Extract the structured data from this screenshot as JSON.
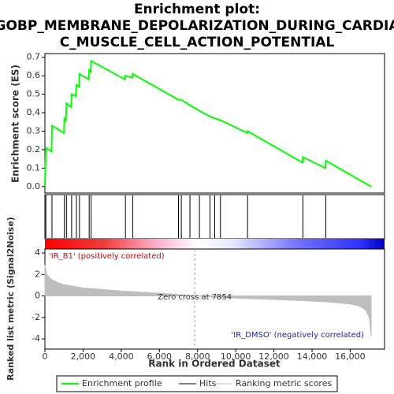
{
  "chart_data": [
    {
      "type": "line",
      "title": [
        "Enrichment plot:",
        "GOBP_MEMBRANE_DEPOLARIZATION_DURING_CARDIA",
        "C_MUSCLE_CELL_ACTION_POTENTIAL"
      ],
      "y_label": "Enrichment score (ES)",
      "ylim": [
        -0.035,
        0.72
      ],
      "yticks": [
        {
          "value": 0,
          "label": "0.0"
        },
        0.1,
        0.2,
        0.3,
        0.4,
        0.5,
        0.6,
        0.7
      ],
      "series": [
        {
          "name": "Enrichment profile",
          "color": "#00ff00",
          "x": [
            0,
            50,
            350,
            370,
            1000,
            1020,
            1100,
            1130,
            1380,
            1400,
            1620,
            1650,
            1790,
            1810,
            2300,
            2320,
            2400,
            2420,
            4200,
            4220,
            4580,
            4600,
            7000,
            7150,
            7600,
            8100,
            8650,
            8900,
            9200,
            10600,
            10620,
            13500,
            13520,
            14700,
            14720,
            17100
          ],
          "values": [
            0,
            0.21,
            0.19,
            0.33,
            0.29,
            0.37,
            0.36,
            0.45,
            0.43,
            0.5,
            0.49,
            0.55,
            0.54,
            0.61,
            0.58,
            0.63,
            0.62,
            0.68,
            0.58,
            0.6,
            0.59,
            0.61,
            0.47,
            0.47,
            0.44,
            0.41,
            0.38,
            0.37,
            0.36,
            0.29,
            0.3,
            0.13,
            0.16,
            0.1,
            0.14,
            0
          ]
        }
      ],
      "hits": {
        "name": "Hits",
        "color": "#000000",
        "x": [
          50,
          370,
          1020,
          1130,
          1400,
          1650,
          1810,
          2320,
          2420,
          4220,
          4600,
          7000,
          7150,
          7600,
          8100,
          8650,
          8900,
          9200,
          10620,
          13520,
          14720
        ]
      }
    },
    {
      "type": "area",
      "x_label": "Rank in Ordered Dataset",
      "y_label": "Ranked list metric (Signal2Noise)",
      "xlim": [
        0,
        17800
      ],
      "xticks": [
        0,
        {
          "value": 2000,
          "label": "2,000"
        },
        {
          "value": 4000,
          "label": "4,000"
        },
        {
          "value": 6000,
          "label": "6,000"
        },
        {
          "value": 8000,
          "label": "8,000"
        },
        {
          "value": 10000,
          "label": "10,000"
        },
        {
          "value": 12000,
          "label": "12,000"
        },
        {
          "value": 14000,
          "label": "14,000"
        },
        {
          "value": 16000,
          "label": "16,000"
        }
      ],
      "ylim": [
        -4.95,
        4.37
      ],
      "yticks": [
        4,
        2,
        0,
        -2,
        -4
      ],
      "series": [
        {
          "name": "Ranking metric scores",
          "color": "#bebebe",
          "x": [
            0,
            100,
            300,
            600,
            1000,
            1500,
            2000,
            3000,
            4000,
            5000,
            6000,
            7000,
            7854,
            9000,
            10000,
            11000,
            12000,
            13000,
            14000,
            15000,
            16000,
            16500,
            16800,
            17000,
            17100
          ],
          "values": [
            2.9,
            2.0,
            1.6,
            1.3,
            1.05,
            0.9,
            0.75,
            0.6,
            0.45,
            0.35,
            0.25,
            0.12,
            0,
            -0.12,
            -0.2,
            -0.27,
            -0.33,
            -0.4,
            -0.48,
            -0.58,
            -0.75,
            -0.95,
            -1.3,
            -2.0,
            -3.8
          ]
        }
      ],
      "zero_cross": {
        "value": 7854,
        "label": "Zero cross at 7854"
      },
      "annotations": [
        "'IR_B1' (positively correlated)",
        "'IR_DMSO' (negatively correlated)"
      ]
    }
  ]
}
